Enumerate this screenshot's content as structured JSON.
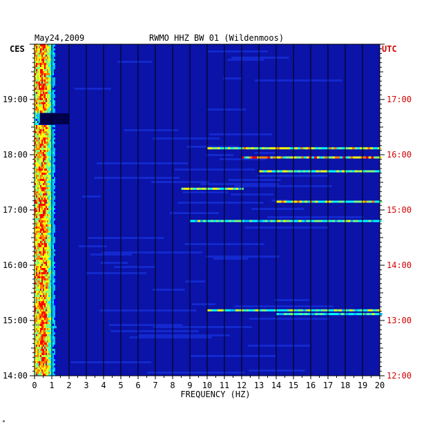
{
  "header": {
    "date": "May24,2009",
    "station": "RWMO HHZ BW 01 (Wildenmoos)",
    "left_zone": "CES",
    "right_zone": "UTC"
  },
  "footer_mark": "*",
  "chart_data": {
    "type": "heatmap",
    "title": "RWMO HHZ BW 01 (Wildenmoos)",
    "date": "May24,2009",
    "xlabel": "FREQUENCY (HZ)",
    "xlim": [
      0,
      20
    ],
    "x_ticks": [
      "0",
      "1",
      "2",
      "3",
      "4",
      "5",
      "6",
      "7",
      "8",
      "9",
      "10",
      "11",
      "12",
      "13",
      "14",
      "15",
      "16",
      "17",
      "18",
      "19",
      "20"
    ],
    "ylabel_left": "CES",
    "ylabel_right": "UTC",
    "y_ticks_left": [
      "19:00",
      "18:00",
      "17:00",
      "16:00",
      "15:00",
      "14:00"
    ],
    "y_ticks_left_hours": [
      19,
      18,
      17,
      16,
      15,
      14
    ],
    "y_ticks_right": [
      "17:00",
      "16:00",
      "15:00",
      "14:00",
      "13:00",
      "12:00"
    ],
    "ylim_hours_ces": [
      14,
      20
    ],
    "colormap": [
      "#00008b",
      "#0000ff",
      "#00bfff",
      "#00ffff",
      "#7fff7f",
      "#ffff00",
      "#ff7f00",
      "#ff0000"
    ],
    "background_color": "#0b13a8",
    "gap_hours_ces": [
      18.55,
      18.75
    ],
    "bands": [
      {
        "time": "18:07",
        "freq_range": [
          10,
          20
        ],
        "level": 0.8
      },
      {
        "time": "17:57",
        "freq_range": [
          12,
          20
        ],
        "level": 0.9
      },
      {
        "time": "17:42",
        "freq_range": [
          13,
          20
        ],
        "level": 0.7
      },
      {
        "time": "17:23",
        "freq_range": [
          8.5,
          12
        ],
        "level": 0.7
      },
      {
        "time": "17:09",
        "freq_range": [
          14,
          20
        ],
        "level": 0.75
      },
      {
        "time": "16:48",
        "freq_range": [
          9,
          20
        ],
        "level": 0.6
      },
      {
        "time": "15:11",
        "freq_range": [
          10,
          20
        ],
        "level": 0.65
      },
      {
        "time": "15:07",
        "freq_range": [
          14,
          20
        ],
        "level": 0.6
      }
    ]
  }
}
